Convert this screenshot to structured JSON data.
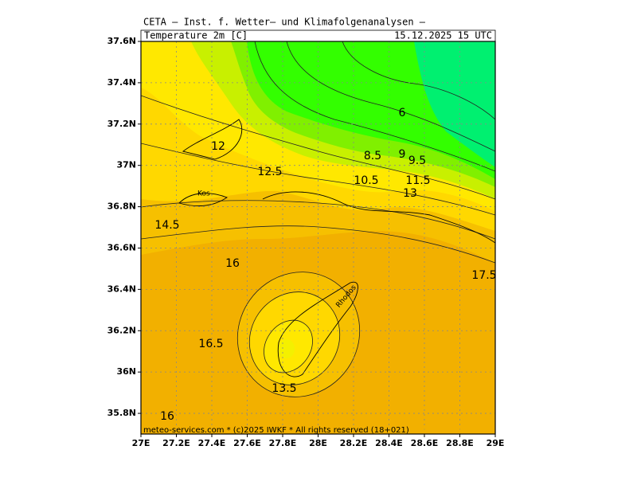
{
  "header": {
    "institute": "CETA — Inst. f. Wetter— und Klimafolgenanalysen —",
    "field": "Temperature 2m [C]",
    "valid_time": "15.12.2025 15 UTC"
  },
  "axes": {
    "lon_range": [
      27,
      29
    ],
    "lat_range": [
      35.7,
      37.6
    ],
    "lon_ticks": [
      {
        "value": 27,
        "label": "27E"
      },
      {
        "value": 27.2,
        "label": "27.2E"
      },
      {
        "value": 27.4,
        "label": "27.4E"
      },
      {
        "value": 27.6,
        "label": "27.6E"
      },
      {
        "value": 27.8,
        "label": "27.8E"
      },
      {
        "value": 28,
        "label": "28E"
      },
      {
        "value": 28.2,
        "label": "28.2E"
      },
      {
        "value": 28.4,
        "label": "28.4E"
      },
      {
        "value": 28.6,
        "label": "28.6E"
      },
      {
        "value": 28.8,
        "label": "28.8E"
      },
      {
        "value": 29,
        "label": "29E"
      }
    ],
    "lat_ticks": [
      {
        "value": 35.8,
        "label": "35.8N"
      },
      {
        "value": 36,
        "label": "36N"
      },
      {
        "value": 36.2,
        "label": "36.2N"
      },
      {
        "value": 36.4,
        "label": "36.4N"
      },
      {
        "value": 36.6,
        "label": "36.6N"
      },
      {
        "value": 36.8,
        "label": "36.8N"
      },
      {
        "value": 37,
        "label": "37N"
      },
      {
        "value": 37.2,
        "label": "37.2N"
      },
      {
        "value": 37.4,
        "label": "37.4N"
      },
      {
        "value": 37.6,
        "label": "37.6N"
      }
    ]
  },
  "contour_labels": [
    "6",
    "8.5",
    "9",
    "9.5",
    "10.5",
    "11.5",
    "13",
    "12",
    "12.5",
    "14.5",
    "16",
    "17.5",
    "16.5",
    "13.5",
    "16"
  ],
  "places": [
    "Kos",
    "Rhodos"
  ],
  "footer": "meteo-services.com * (c)2025 IWKF * All rights reserved (18+021)"
}
